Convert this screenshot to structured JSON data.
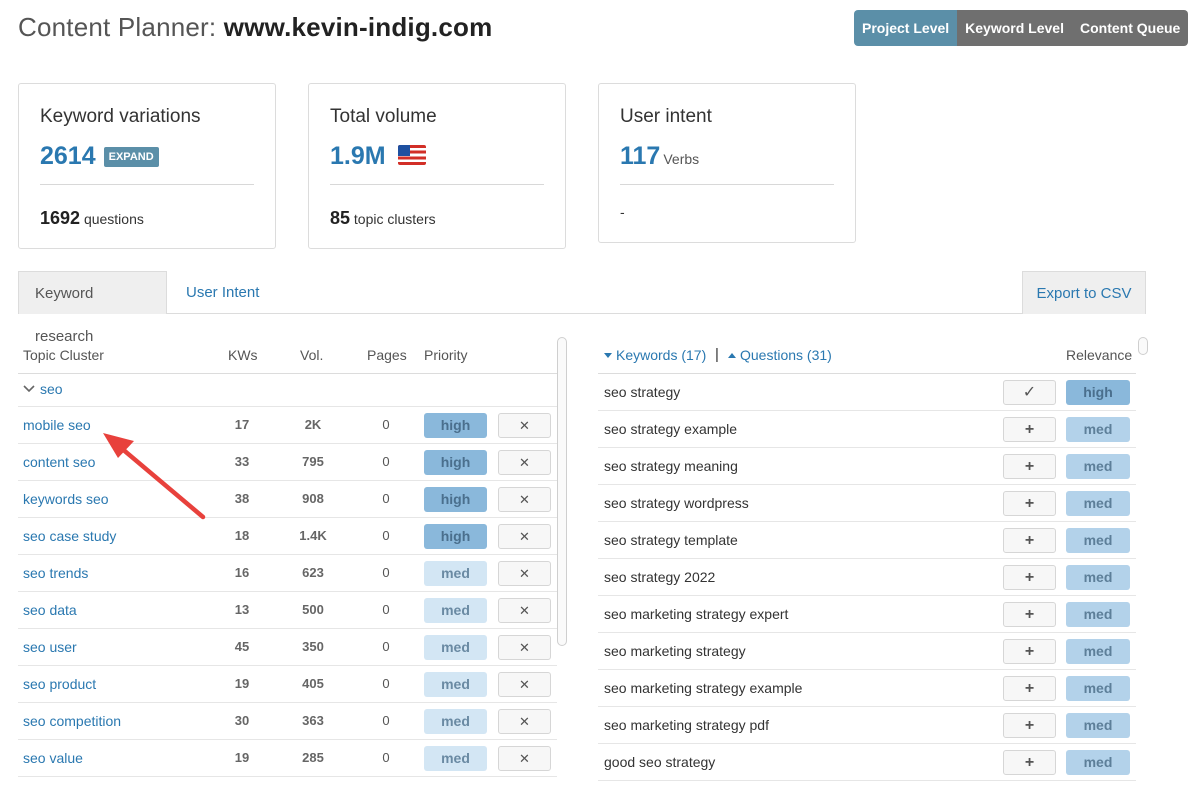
{
  "header": {
    "title_prefix": "Content Planner:",
    "domain": "www.kevin-indig.com",
    "levels": [
      {
        "label": "Project Level",
        "active": true
      },
      {
        "label": "Keyword Level",
        "active": false
      },
      {
        "label": "Content Queue",
        "active": false
      }
    ]
  },
  "cards": {
    "keyword_variations": {
      "title": "Keyword variations",
      "value": "2614",
      "badge": "EXPAND",
      "sub_value": "1692",
      "sub_label": "questions"
    },
    "total_volume": {
      "title": "Total volume",
      "value": "1.9M",
      "flag": "us-flag-icon",
      "sub_value": "85",
      "sub_label": "topic clusters"
    },
    "user_intent": {
      "title": "User intent",
      "value": "117",
      "unit": "Verbs",
      "sub_text": "-"
    }
  },
  "tabs": {
    "keyword_research": "Keyword research",
    "user_intent": "User Intent",
    "export": "Export to CSV"
  },
  "left_table": {
    "headers": {
      "topic": "Topic Cluster",
      "kws": "KWs",
      "vol": "Vol.",
      "pages": "Pages",
      "priority": "Priority"
    },
    "group": "seo",
    "remove_symbol": "✕",
    "rows": [
      {
        "topic": "mobile seo",
        "kws": "17",
        "vol": "2K",
        "pages": "0",
        "priority": "high"
      },
      {
        "topic": "content seo",
        "kws": "33",
        "vol": "795",
        "pages": "0",
        "priority": "high"
      },
      {
        "topic": "keywords seo",
        "kws": "38",
        "vol": "908",
        "pages": "0",
        "priority": "high"
      },
      {
        "topic": "seo case study",
        "kws": "18",
        "vol": "1.4K",
        "pages": "0",
        "priority": "high"
      },
      {
        "topic": "seo trends",
        "kws": "16",
        "vol": "623",
        "pages": "0",
        "priority": "med"
      },
      {
        "topic": "seo data",
        "kws": "13",
        "vol": "500",
        "pages": "0",
        "priority": "med"
      },
      {
        "topic": "seo user",
        "kws": "45",
        "vol": "350",
        "pages": "0",
        "priority": "med"
      },
      {
        "topic": "seo product",
        "kws": "19",
        "vol": "405",
        "pages": "0",
        "priority": "med"
      },
      {
        "topic": "seo competition",
        "kws": "30",
        "vol": "363",
        "pages": "0",
        "priority": "med"
      },
      {
        "topic": "seo value",
        "kws": "19",
        "vol": "285",
        "pages": "0",
        "priority": "med"
      }
    ]
  },
  "right_table": {
    "keywords_toggle": "Keywords (17)",
    "separator": "|",
    "questions_toggle": "Questions (31)",
    "relevance_header": "Relevance",
    "rows": [
      {
        "keyword": "seo strategy",
        "action": "✓",
        "relevance": "high"
      },
      {
        "keyword": "seo strategy example",
        "action": "+",
        "relevance": "med"
      },
      {
        "keyword": "seo strategy meaning",
        "action": "+",
        "relevance": "med"
      },
      {
        "keyword": "seo strategy wordpress",
        "action": "+",
        "relevance": "med"
      },
      {
        "keyword": "seo strategy template",
        "action": "+",
        "relevance": "med"
      },
      {
        "keyword": "seo strategy 2022",
        "action": "+",
        "relevance": "med"
      },
      {
        "keyword": "seo marketing strategy expert",
        "action": "+",
        "relevance": "med"
      },
      {
        "keyword": "seo marketing strategy",
        "action": "+",
        "relevance": "med"
      },
      {
        "keyword": "seo marketing strategy example",
        "action": "+",
        "relevance": "med"
      },
      {
        "keyword": "seo marketing strategy pdf",
        "action": "+",
        "relevance": "med"
      },
      {
        "keyword": "good seo strategy",
        "action": "+",
        "relevance": "med"
      }
    ]
  },
  "colors": {
    "accent": "#2a78b0",
    "active_segment": "#5b8fa8",
    "annotation_arrow": "#e8413c"
  }
}
